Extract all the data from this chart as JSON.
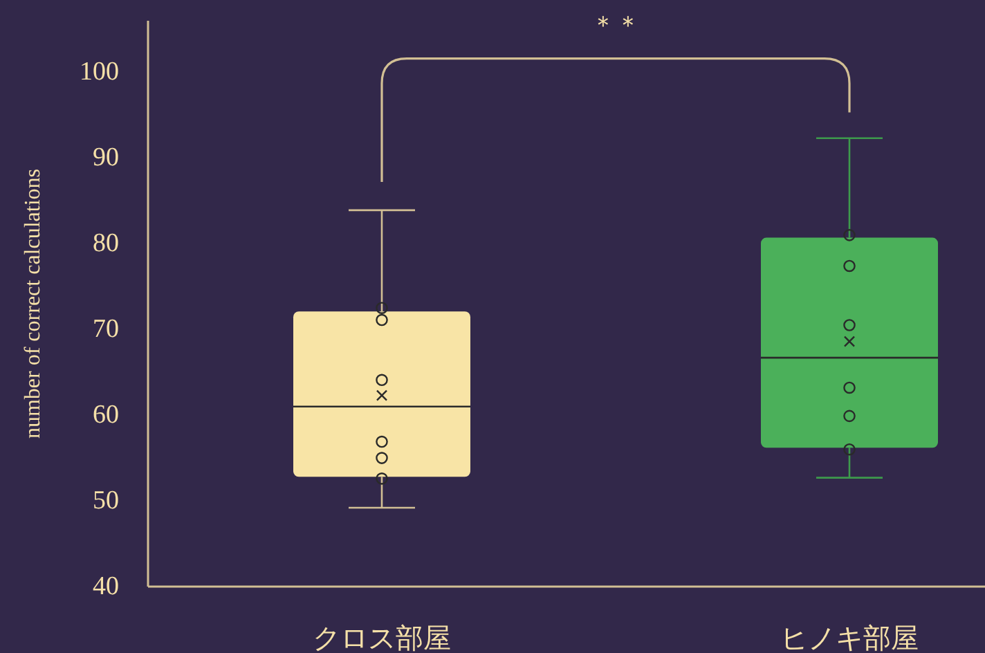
{
  "chart_data": {
    "type": "box",
    "categories": [
      "クロス部屋",
      "ヒノキ部屋"
    ],
    "ylabel": "number of correct calculations",
    "colors": [
      "#f8e4a6",
      "#4bb05a"
    ],
    "boxes": [
      {
        "low": 49.2,
        "q1": 52.8,
        "median": 61.0,
        "q3": 72.1,
        "high": 83.9,
        "mean": 62.3
      },
      {
        "low": 52.7,
        "q1": 56.2,
        "median": 66.7,
        "q3": 80.7,
        "high": 92.3,
        "mean": 68.6
      }
    ],
    "series": [
      {
        "type": "scatter",
        "x": [
          "クロス部屋",
          "クロス部屋",
          "クロス部屋",
          "クロス部屋",
          "クロス部屋",
          "クロス部屋",
          "ヒノキ部屋",
          "ヒノキ部屋",
          "ヒノキ部屋",
          "ヒノキ部屋",
          "ヒノキ部屋",
          "ヒノキ部屋"
        ],
        "values": [
          72.5,
          71.1,
          64.1,
          56.9,
          55.0,
          52.6,
          81.0,
          77.4,
          70.5,
          63.2,
          59.9,
          56.0
        ],
        "color": "#2a2a2a",
        "marker": "circle"
      }
    ],
    "ylim": [
      40,
      106
    ],
    "yticks": [
      40,
      50,
      60,
      70,
      80,
      90,
      100
    ],
    "annotations": [
      "＊＊"
    ]
  }
}
